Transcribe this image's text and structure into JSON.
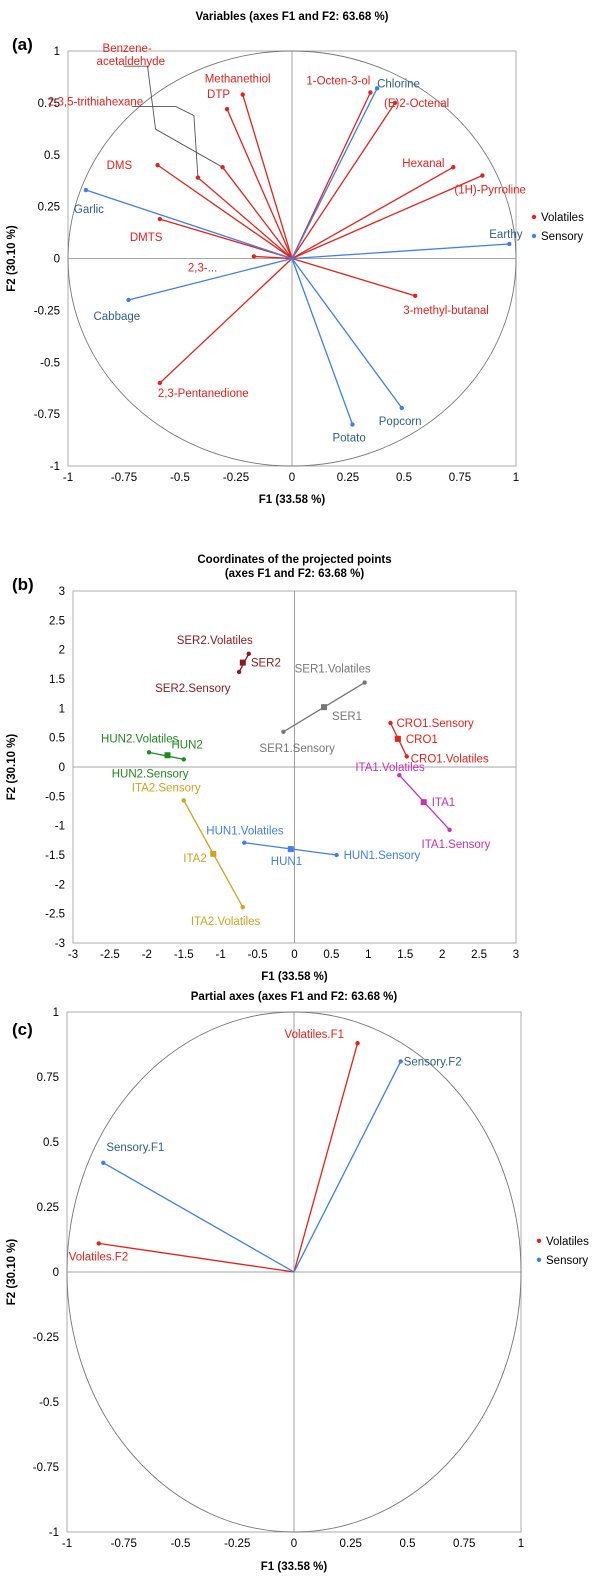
{
  "colors": {
    "volatiles": "#e8211c",
    "volatiles_label": "#e8211c",
    "sensory": "#3f7fe8",
    "sensory_label": "#2f5f8e",
    "axis": "#888888",
    "circle": "#777777",
    "leader": "#555555"
  },
  "chart_data": [
    {
      "panel": "(a)",
      "type": "scatter",
      "title": "Variables (axes F1 and F2: 63.68 %)",
      "xlabel": "F1 (33.58 %)",
      "ylabel": "F2 (30.10 %)",
      "xlim": [
        -1,
        1
      ],
      "ylim": [
        -1,
        1
      ],
      "xticks": [
        "-1",
        "-0.75",
        "-0.5",
        "-0.25",
        "0",
        "0.25",
        "0.5",
        "0.75",
        "1"
      ],
      "yticks": [
        "-1",
        "-0.75",
        "-0.5",
        "-0.25",
        "0",
        "0.25",
        "0.5",
        "0.75",
        "1"
      ],
      "correlation_circle": true,
      "legend": {
        "position": "right",
        "entries": [
          "Volatiles",
          "Sensory"
        ]
      },
      "vectors": [
        {
          "label": "Methanethiol",
          "group": "Volatiles",
          "x": -0.22,
          "y": 0.79
        },
        {
          "label": "DTP",
          "group": "Volatiles",
          "x": -0.29,
          "y": 0.72
        },
        {
          "label": "Benzene-",
          "label2": "acetaldehyde",
          "group": "Volatiles",
          "x": -0.31,
          "y": 0.44
        },
        {
          "label": "2,3,5-trithiahexane",
          "group": "Volatiles",
          "x": -0.42,
          "y": 0.39
        },
        {
          "label": "DMS",
          "group": "Volatiles",
          "x": -0.6,
          "y": 0.45
        },
        {
          "label": "DMTS",
          "group": "Volatiles",
          "x": -0.59,
          "y": 0.19
        },
        {
          "label": "2,3-...",
          "group": "Volatiles",
          "x": -0.17,
          "y": 0.01
        },
        {
          "label": "2,3-Pentanedione",
          "group": "Volatiles",
          "x": -0.59,
          "y": -0.6
        },
        {
          "label": "1-Octen-3-ol",
          "group": "Volatiles",
          "x": 0.35,
          "y": 0.8
        },
        {
          "label": "(E)2-Octenal",
          "group": "Volatiles",
          "x": 0.46,
          "y": 0.75
        },
        {
          "label": "Hexanal",
          "group": "Volatiles",
          "x": 0.72,
          "y": 0.44
        },
        {
          "label": "(1H)-Pyrroline",
          "group": "Volatiles",
          "x": 0.85,
          "y": 0.4
        },
        {
          "label": "3-methyl-butanal",
          "group": "Volatiles",
          "x": 0.55,
          "y": -0.18
        },
        {
          "label": "Chlorine",
          "group": "Sensory",
          "x": 0.38,
          "y": 0.82
        },
        {
          "label": "Garlic",
          "group": "Sensory",
          "x": -0.92,
          "y": 0.33
        },
        {
          "label": "Cabbage",
          "group": "Sensory",
          "x": -0.73,
          "y": -0.2
        },
        {
          "label": "Earthy",
          "group": "Sensory",
          "x": 0.97,
          "y": 0.07
        },
        {
          "label": "Potato",
          "group": "Sensory",
          "x": 0.27,
          "y": -0.8
        },
        {
          "label": "Popcorn",
          "group": "Sensory",
          "x": 0.49,
          "y": -0.72
        }
      ]
    },
    {
      "panel": "(b)",
      "type": "scatter",
      "title": "Coordinates of the projected points",
      "title2": "(axes F1 and F2: 63.68 %)",
      "xlabel": "F1 (33.58 %)",
      "ylabel": "F2 (30.10 %)",
      "xlim": [
        -3,
        3
      ],
      "ylim": [
        -3,
        3
      ],
      "xticks": [
        "-3",
        "-2.5",
        "-2",
        "-1.5",
        "-1",
        "-0.5",
        "0",
        "0.5",
        "1",
        "1.5",
        "2",
        "2.5",
        "3"
      ],
      "yticks": [
        "-3",
        "-2.5",
        "-2",
        "-1.5",
        "-1",
        "-0.5",
        "0",
        "0.5",
        "1",
        "1.5",
        "2",
        "2.5",
        "3"
      ],
      "groups": [
        {
          "name": "SER2",
          "color": "#8b1a1a",
          "center": {
            "label": "SER2",
            "x": -0.7,
            "y": 1.78
          },
          "volatiles": {
            "label": "SER2.Volatiles",
            "x": -0.62,
            "y": 1.93
          },
          "sensory": {
            "label": "SER2.Sensory",
            "x": -0.75,
            "y": 1.62
          }
        },
        {
          "name": "SER1",
          "color": "#777777",
          "center": {
            "label": "SER1",
            "x": 0.4,
            "y": 1.02
          },
          "volatiles": {
            "label": "SER1.Volatiles",
            "x": 0.95,
            "y": 1.44
          },
          "sensory": {
            "label": "SER1.Sensory",
            "x": -0.15,
            "y": 0.6
          }
        },
        {
          "name": "CRO1",
          "color": "#e8211c",
          "center": {
            "label": "CRO1",
            "x": 1.4,
            "y": 0.48
          },
          "volatiles": {
            "label": "CRO1.Volatiles",
            "x": 1.52,
            "y": 0.18
          },
          "sensory": {
            "label": "CRO1.Sensory",
            "x": 1.3,
            "y": 0.75
          }
        },
        {
          "name": "ITA1",
          "color": "#c832b4",
          "center": {
            "label": "ITA1",
            "x": 1.75,
            "y": -0.6
          },
          "volatiles": {
            "label": "ITA1.Volatiles",
            "x": 1.42,
            "y": -0.14
          },
          "sensory": {
            "label": "ITA1.Sensory",
            "x": 2.1,
            "y": -1.07
          }
        },
        {
          "name": "HUN2",
          "color": "#1e8a1e",
          "center": {
            "label": "HUN2",
            "x": -1.72,
            "y": 0.2
          },
          "volatiles": {
            "label": "HUN2.Volatiles",
            "x": -1.97,
            "y": 0.25
          },
          "sensory": {
            "label": "HUN2.Sensory",
            "x": -1.5,
            "y": 0.13
          }
        },
        {
          "name": "HUN1",
          "color": "#3f7fe8",
          "center": {
            "label": "HUN1",
            "x": -0.05,
            "y": -1.4
          },
          "volatiles": {
            "label": "HUN1.Volatiles",
            "x": -0.68,
            "y": -1.29
          },
          "sensory": {
            "label": "HUN1.Sensory",
            "x": 0.57,
            "y": -1.5
          }
        },
        {
          "name": "ITA2",
          "color": "#d4a020",
          "center": {
            "label": "ITA2",
            "x": -1.1,
            "y": -1.48
          },
          "volatiles": {
            "label": "ITA2.Volatiles",
            "x": -0.7,
            "y": -2.39
          },
          "sensory": {
            "label": "ITA2.Sensory",
            "x": -1.5,
            "y": -0.57
          }
        }
      ]
    },
    {
      "panel": "(c)",
      "type": "scatter",
      "title": "Partial axes (axes F1 and F2: 63.68 %)",
      "xlabel": "F1 (33.58 %)",
      "ylabel": "F2 (30.10 %)",
      "xlim": [
        -1,
        1
      ],
      "ylim": [
        -1,
        1
      ],
      "xticks": [
        "-1",
        "-0.75",
        "-0.5",
        "-0.25",
        "0",
        "0.25",
        "0.5",
        "0.75",
        "1"
      ],
      "yticks": [
        "-1",
        "-0.75",
        "-0.5",
        "-0.25",
        "0",
        "0.25",
        "0.5",
        "0.75",
        "1"
      ],
      "correlation_circle": true,
      "legend": {
        "position": "right",
        "entries": [
          "Volatiles",
          "Sensory"
        ]
      },
      "vectors": [
        {
          "label": "Volatiles.F1",
          "group": "Volatiles",
          "x": 0.28,
          "y": 0.88
        },
        {
          "label": "Volatiles.F2",
          "group": "Volatiles",
          "x": -0.86,
          "y": 0.11
        },
        {
          "label": "Sensory.F1",
          "group": "Sensory",
          "x": -0.84,
          "y": 0.42
        },
        {
          "label": "Sensory.F2",
          "group": "Sensory",
          "x": 0.47,
          "y": 0.81
        }
      ]
    }
  ]
}
